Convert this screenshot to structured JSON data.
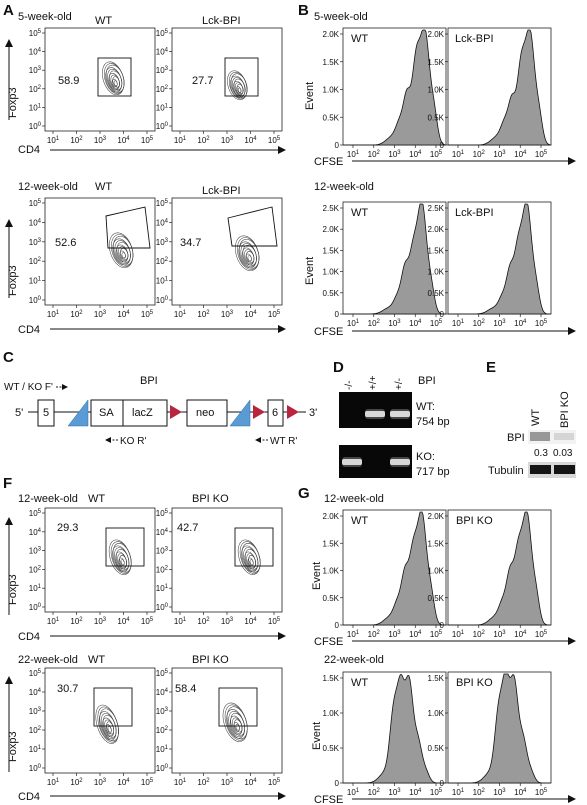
{
  "panel_letters": [
    "A",
    "B",
    "C",
    "D",
    "E",
    "F",
    "G"
  ],
  "common": {
    "wt": "WT",
    "lck_bpi": "Lck-BPI",
    "bpi_ko": "BPI KO",
    "foxp3": "Foxp3",
    "cd4": "CD4",
    "cfse": "CFSE",
    "event": "Event",
    "bpi": "BPI"
  },
  "ages": {
    "w5": "5-week-old",
    "w12": "12-week-old",
    "w22": "22-week-old"
  },
  "panelA": {
    "row1": [
      "58.9",
      "27.7"
    ],
    "row2": [
      "52.6",
      "34.7"
    ]
  },
  "panelF": {
    "row1": [
      "29.3",
      "42.7"
    ],
    "row2": [
      "30.7",
      "58.4"
    ]
  },
  "flow_ticks": {
    "y": [
      [
        "10",
        "5"
      ],
      [
        "10",
        "4"
      ],
      [
        "10",
        "3"
      ],
      [
        "10",
        "2"
      ],
      [
        "10",
        "1"
      ],
      [
        "10",
        "0"
      ]
    ],
    "x": [
      [
        "10",
        "1"
      ],
      [
        "10",
        "2"
      ],
      [
        "10",
        "3"
      ],
      [
        "10",
        "4"
      ],
      [
        "10",
        "5"
      ]
    ]
  },
  "hist_ticks": {
    "r1": [
      "2.0K",
      "1.5K",
      "1.0K",
      "0.5K",
      "0"
    ],
    "r2": [
      "2.5K",
      "2.0K",
      "1.5K",
      "1.0K",
      "0.5K",
      "0"
    ],
    "r3": [
      "2.0K",
      "1.5K",
      "1.0K",
      "0.5K",
      "0"
    ],
    "r4": [
      "1.5K",
      "1.0K",
      "0.5K",
      "0"
    ]
  },
  "panelC": {
    "primer_f": "WT / KO F'",
    "title": "BPI",
    "five_prime": "5'",
    "three_prime": "3'",
    "exon5": "5",
    "exon6": "6",
    "sa": "SA",
    "lacz": "lacZ",
    "neo": "neo",
    "ko_r": "KO R'",
    "wt_r": "WT R'"
  },
  "panelD": {
    "lanes": [
      "-/-",
      "+/+",
      "+/-"
    ],
    "bpi": "BPI",
    "wt_label": "WT:",
    "wt_bp": "754 bp",
    "ko_label": "KO:",
    "ko_bp": "717 bp"
  },
  "panelE": {
    "lanes": [
      "WT",
      "BPI KO"
    ],
    "bpi": "BPI",
    "values": [
      "0.3",
      "0.03"
    ],
    "tubulin": "Tubulin"
  }
}
